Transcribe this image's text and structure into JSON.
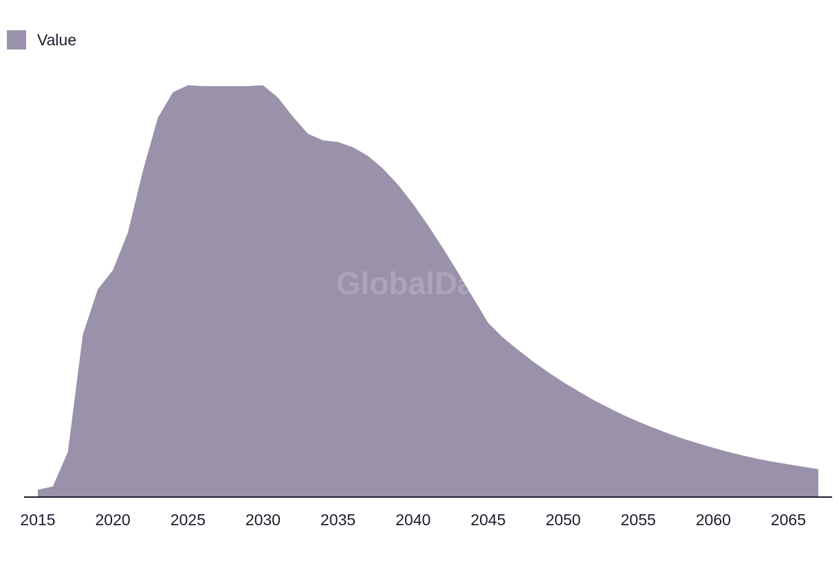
{
  "legend": {
    "label": "Value",
    "swatch_color": "#9a91aa"
  },
  "watermark": "GlobalData",
  "colors": {
    "area": "#9a91aa",
    "axis": "#1f1b2d",
    "text": "#1f1b2d"
  },
  "chart_data": {
    "type": "area",
    "title": "",
    "xlabel": "",
    "ylabel": "",
    "grid": false,
    "legend_position": "top-left",
    "xlim": [
      2015,
      2067
    ],
    "ylim": [
      0,
      100
    ],
    "x_ticks": [
      "2015",
      "2020",
      "2025",
      "2030",
      "2035",
      "2040",
      "2045",
      "2050",
      "2055",
      "2060",
      "2065"
    ],
    "series": [
      {
        "name": "Value",
        "x": [
          2015,
          2016,
          2017,
          2018,
          2019,
          2020,
          2021,
          2022,
          2023,
          2024,
          2025,
          2026,
          2027,
          2028,
          2029,
          2030,
          2031,
          2032,
          2033,
          2034,
          2035,
          2036,
          2037,
          2038,
          2039,
          2040,
          2041,
          2042,
          2043,
          2044,
          2045,
          2046,
          2047,
          2048,
          2049,
          2050,
          2051,
          2052,
          2053,
          2054,
          2055,
          2056,
          2057,
          2058,
          2059,
          2060,
          2061,
          2062,
          2063,
          2064,
          2065,
          2066,
          2067
        ],
        "values": [
          1.6,
          2.4,
          10.8,
          39.4,
          50.4,
          55.0,
          64.2,
          79.2,
          92.1,
          98.3,
          100.0,
          99.8,
          99.8,
          99.8,
          99.8,
          100.0,
          97.0,
          92.3,
          88.2,
          86.6,
          86.2,
          84.9,
          82.8,
          79.7,
          75.8,
          71.1,
          65.9,
          60.3,
          54.4,
          48.3,
          42.2,
          38.6,
          35.6,
          32.8,
          30.2,
          27.8,
          25.6,
          23.5,
          21.6,
          19.8,
          18.2,
          16.7,
          15.3,
          14.0,
          12.9,
          11.8,
          10.8,
          9.9,
          9.1,
          8.4,
          7.8,
          7.2,
          6.6
        ]
      }
    ]
  }
}
